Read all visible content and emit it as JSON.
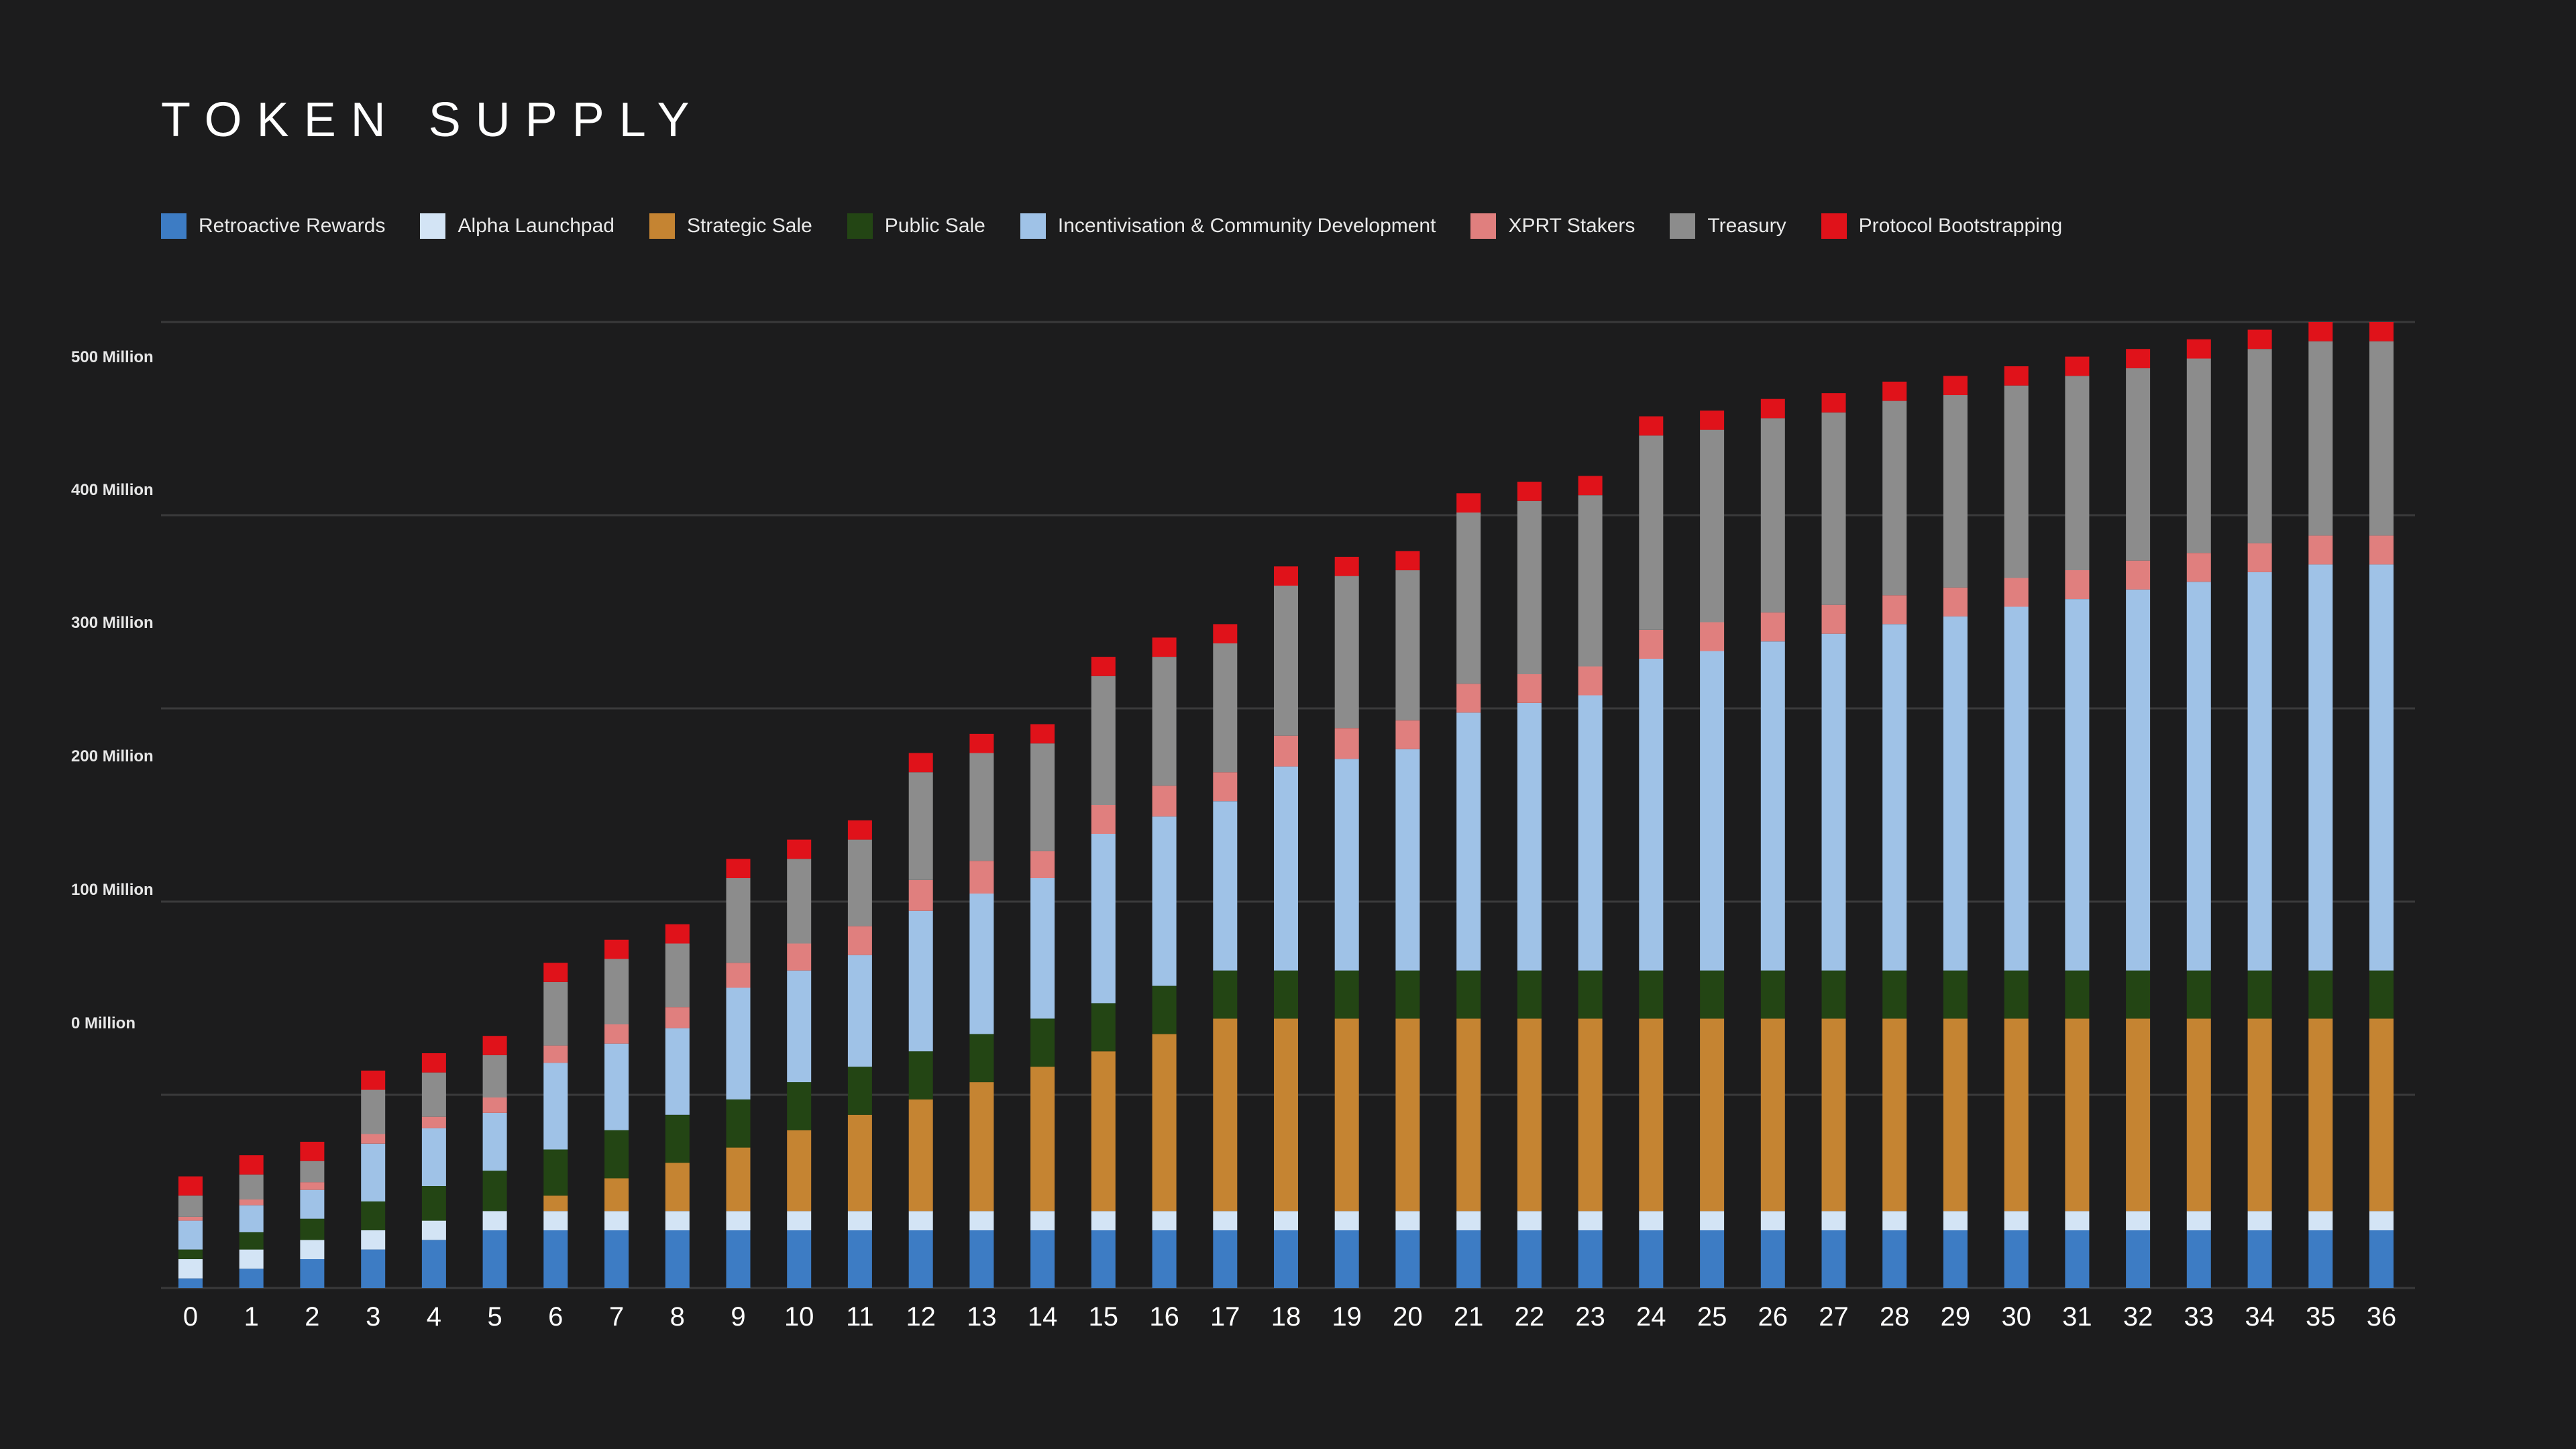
{
  "page": {
    "title": "TOKEN SUPPLY"
  },
  "chart_data": {
    "type": "bar",
    "stacked": true,
    "title": "TOKEN SUPPLY",
    "xlabel": "",
    "ylabel": "",
    "y_tick_labels": [
      "500 Million",
      "400 Million",
      "300 Million",
      "200 Million",
      "100 Million",
      "0 Million"
    ],
    "grid": true,
    "legend_position": "top-left",
    "categories": [
      "0",
      "1",
      "2",
      "3",
      "4",
      "5",
      "6",
      "7",
      "8",
      "9",
      "10",
      "11",
      "12",
      "13",
      "14",
      "15",
      "16",
      "17",
      "18",
      "19",
      "20",
      "21",
      "22",
      "23",
      "24",
      "25",
      "26",
      "27",
      "28",
      "29",
      "30",
      "31",
      "32",
      "33",
      "34",
      "35",
      "36"
    ],
    "series": [
      {
        "name": "Retroactive Rewards",
        "color": "#3d7cc4",
        "values": [
          5,
          10,
          15,
          20,
          25,
          30,
          30,
          30,
          30,
          30,
          30,
          30,
          30,
          30,
          30,
          30,
          30,
          30,
          30,
          30,
          30,
          30,
          30,
          30,
          30,
          30,
          30,
          30,
          30,
          30,
          30,
          30,
          30,
          30,
          30,
          30,
          30
        ]
      },
      {
        "name": "Alpha Launchpad",
        "color": "#d3e4f5",
        "values": [
          10,
          10,
          10,
          10,
          10,
          10,
          10,
          10,
          10,
          10,
          10,
          10,
          10,
          10,
          10,
          10,
          10,
          10,
          10,
          10,
          10,
          10,
          10,
          10,
          10,
          10,
          10,
          10,
          10,
          10,
          10,
          10,
          10,
          10,
          10,
          10,
          10
        ]
      },
      {
        "name": "Strategic Sale",
        "color": "#c58432",
        "values": [
          0,
          0,
          0,
          0,
          0,
          0,
          8,
          17,
          25,
          33,
          42,
          50,
          58,
          67,
          75,
          83,
          92,
          100,
          100,
          100,
          100,
          100,
          100,
          100,
          100,
          100,
          100,
          100,
          100,
          100,
          100,
          100,
          100,
          100,
          100,
          100,
          100
        ]
      },
      {
        "name": "Public Sale",
        "color": "#234514",
        "values": [
          5,
          9,
          11,
          15,
          18,
          21,
          24,
          25,
          25,
          25,
          25,
          25,
          25,
          25,
          25,
          25,
          25,
          25,
          25,
          25,
          25,
          25,
          25,
          25,
          25,
          25,
          25,
          25,
          25,
          25,
          25,
          25,
          25,
          25,
          25,
          25,
          25
        ]
      },
      {
        "name": "Incentivisation & Community Development",
        "color": "#9fc2e7",
        "values": [
          15,
          14,
          15,
          30,
          30,
          30,
          45,
          45,
          45,
          58,
          58,
          58,
          73,
          73,
          73,
          88,
          88,
          88,
          106,
          110,
          115,
          134,
          139,
          143,
          162,
          166,
          171,
          175,
          180,
          184,
          189,
          193,
          198,
          202,
          207,
          211,
          211
        ]
      },
      {
        "name": "XPRT Stakers",
        "color": "#e07f7e",
        "values": [
          2,
          3,
          4,
          5,
          6,
          8,
          9,
          10,
          11,
          13,
          14,
          15,
          16,
          17,
          14,
          15,
          16,
          15,
          16,
          16,
          15,
          15,
          15,
          15,
          15,
          15,
          15,
          15,
          15,
          15,
          15,
          15,
          15,
          15,
          15,
          15,
          15
        ]
      },
      {
        "name": "Treasury",
        "color": "#8c8c8c",
        "values": [
          11,
          13,
          11,
          23,
          23,
          22,
          33,
          34,
          33,
          44,
          44,
          45,
          56,
          56,
          56,
          67,
          67,
          67,
          78,
          79,
          78,
          89,
          90,
          89,
          101,
          100,
          101,
          100,
          101,
          100,
          100,
          101,
          100,
          101,
          101,
          101,
          101
        ]
      },
      {
        "name": "Protocol Bootstrapping",
        "color": "#e0121a",
        "values": [
          10,
          10,
          10,
          10,
          10,
          10,
          10,
          10,
          10,
          10,
          10,
          10,
          10,
          10,
          10,
          10,
          10,
          10,
          10,
          10,
          10,
          10,
          10,
          10,
          10,
          10,
          10,
          10,
          10,
          10,
          10,
          10,
          10,
          10,
          10,
          10,
          10
        ]
      }
    ]
  }
}
